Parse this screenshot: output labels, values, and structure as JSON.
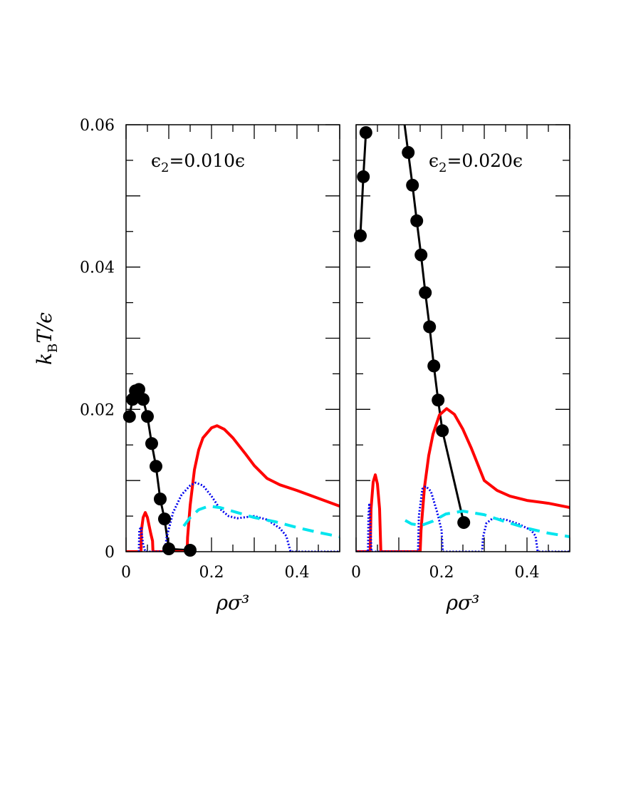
{
  "chart_data": [
    {
      "type": "line",
      "panel": "left",
      "annotation": {
        "prefix": "ϵ",
        "sub": "2",
        "suffix": "=0.010ϵ"
      },
      "xlabel": "ρσ³",
      "ylabel": {
        "main": "k",
        "sub": "B",
        "rest": "T/ϵ"
      },
      "xlim": [
        0,
        0.5
      ],
      "ylim": [
        0,
        0.06
      ],
      "xticks": [
        "0",
        "0.2",
        "0.4"
      ],
      "yticks": [
        "0",
        "0.02",
        "0.04",
        "0.06"
      ],
      "grid": false,
      "series": [
        {
          "style": "black-line-markers",
          "color": "#000000",
          "x": [
            0.008,
            0.015,
            0.022,
            0.03,
            0.04,
            0.05,
            0.06,
            0.07,
            0.08,
            0.09,
            0.1,
            0.15
          ],
          "y": [
            0.019,
            0.0214,
            0.0226,
            0.0228,
            0.0214,
            0.019,
            0.0152,
            0.012,
            0.0074,
            0.0046,
            0.0004,
            0.0002
          ]
        },
        {
          "style": "solid",
          "color": "#ff0000",
          "x": [
            0,
            0.035,
            0.036,
            0.04,
            0.045,
            0.05,
            0.058,
            0.062,
            0.063,
            0.143,
            0.144,
            0.15,
            0.16,
            0.17,
            0.18,
            0.2,
            0.213,
            0.23,
            0.25,
            0.28,
            0.3,
            0.33,
            0.36,
            0.4,
            0.45,
            0.5
          ],
          "y": [
            0,
            0,
            0.003,
            0.0048,
            0.0055,
            0.0048,
            0.0025,
            0.0015,
            0,
            0,
            0.002,
            0.0065,
            0.0115,
            0.0143,
            0.016,
            0.0174,
            0.0177,
            0.0172,
            0.016,
            0.0137,
            0.0121,
            0.0103,
            0.0094,
            0.0086,
            0.0075,
            0.0064
          ]
        },
        {
          "style": "dotted",
          "color": "#0000ee",
          "x": [
            0.03,
            0.031,
            0.035,
            0.04,
            0.045,
            0.09,
            0.095,
            0.11,
            0.13,
            0.15,
            0.163,
            0.18,
            0.2,
            0.22,
            0.24,
            0.26,
            0.3,
            0.33,
            0.36,
            0.375,
            0.385,
            0.5
          ],
          "y": [
            0,
            0.003,
            0.0035,
            0.001,
            0,
            0,
            0.002,
            0.0055,
            0.008,
            0.0093,
            0.0097,
            0.0093,
            0.0078,
            0.006,
            0.005,
            0.0047,
            0.005,
            0.0045,
            0.0033,
            0.0022,
            0,
            0
          ]
        },
        {
          "style": "dashed",
          "color": "#00e5ee",
          "x": [
            0.135,
            0.15,
            0.17,
            0.193,
            0.22,
            0.26,
            0.3,
            0.35,
            0.4,
            0.45,
            0.5
          ],
          "y": [
            0.0036,
            0.0048,
            0.0059,
            0.0064,
            0.0062,
            0.0055,
            0.0048,
            0.0042,
            0.0034,
            0.0027,
            0.0021
          ]
        }
      ]
    },
    {
      "type": "line",
      "panel": "right",
      "annotation": {
        "prefix": "ϵ",
        "sub": "2",
        "suffix": "=0.020ϵ"
      },
      "xlabel": "ρσ³",
      "xlim": [
        0,
        0.5
      ],
      "ylim": [
        0,
        0.06
      ],
      "xticks": [
        "0",
        "0.2",
        "0.4"
      ],
      "grid": false,
      "series": [
        {
          "style": "black-line-markers",
          "color": "#000000",
          "x": [
            0.01,
            0.017,
            0.023
          ],
          "y": [
            0.0444,
            0.0527,
            0.0589
          ]
        },
        {
          "style": "black-line-markers",
          "color": "#000000",
          "extends_above": true,
          "x": [
            0.122,
            0.132,
            0.142,
            0.152,
            0.162,
            0.172,
            0.182,
            0.192,
            0.202,
            0.252
          ],
          "y": [
            0.0561,
            0.0515,
            0.0465,
            0.0417,
            0.0364,
            0.0316,
            0.0261,
            0.0213,
            0.017,
            0.0041
          ]
        },
        {
          "style": "solid",
          "color": "#ff0000",
          "x": [
            0,
            0.033,
            0.035,
            0.04,
            0.045,
            0.05,
            0.055,
            0.057,
            0.058,
            0.15,
            0.152,
            0.16,
            0.17,
            0.18,
            0.195,
            0.212,
            0.23,
            0.25,
            0.27,
            0.3,
            0.33,
            0.36,
            0.4,
            0.45,
            0.5
          ],
          "y": [
            0,
            0,
            0.006,
            0.0098,
            0.0108,
            0.0095,
            0.006,
            0.002,
            0,
            0,
            0.003,
            0.009,
            0.0135,
            0.0165,
            0.0192,
            0.0201,
            0.0193,
            0.0172,
            0.0145,
            0.01,
            0.0086,
            0.0078,
            0.0072,
            0.0068,
            0.0062
          ]
        },
        {
          "style": "dotted",
          "color": "#0000ee",
          "x": [
            0,
            0.028,
            0.029,
            0.031,
            0.034,
            0.036,
            0.145,
            0.147,
            0.155,
            0.163,
            0.175,
            0.19,
            0.2,
            0.203,
            0.295,
            0.297,
            0.305,
            0.32,
            0.35,
            0.38,
            0.41,
            0.42,
            0.425,
            0.5
          ],
          "y": [
            0,
            0,
            0.005,
            0.0068,
            0.003,
            0,
            0,
            0.005,
            0.0088,
            0.0092,
            0.0085,
            0.0055,
            0.003,
            0,
            0,
            0.002,
            0.004,
            0.0047,
            0.0045,
            0.0039,
            0.003,
            0.0022,
            0,
            0
          ]
        },
        {
          "style": "dashed",
          "color": "#00e5ee",
          "x": [
            0.115,
            0.13,
            0.153,
            0.18,
            0.21,
            0.25,
            0.3,
            0.35,
            0.4,
            0.45,
            0.5
          ],
          "y": [
            0.0044,
            0.0039,
            0.0037,
            0.0043,
            0.0053,
            0.0057,
            0.0052,
            0.0042,
            0.0033,
            0.0026,
            0.0021
          ]
        }
      ]
    }
  ]
}
